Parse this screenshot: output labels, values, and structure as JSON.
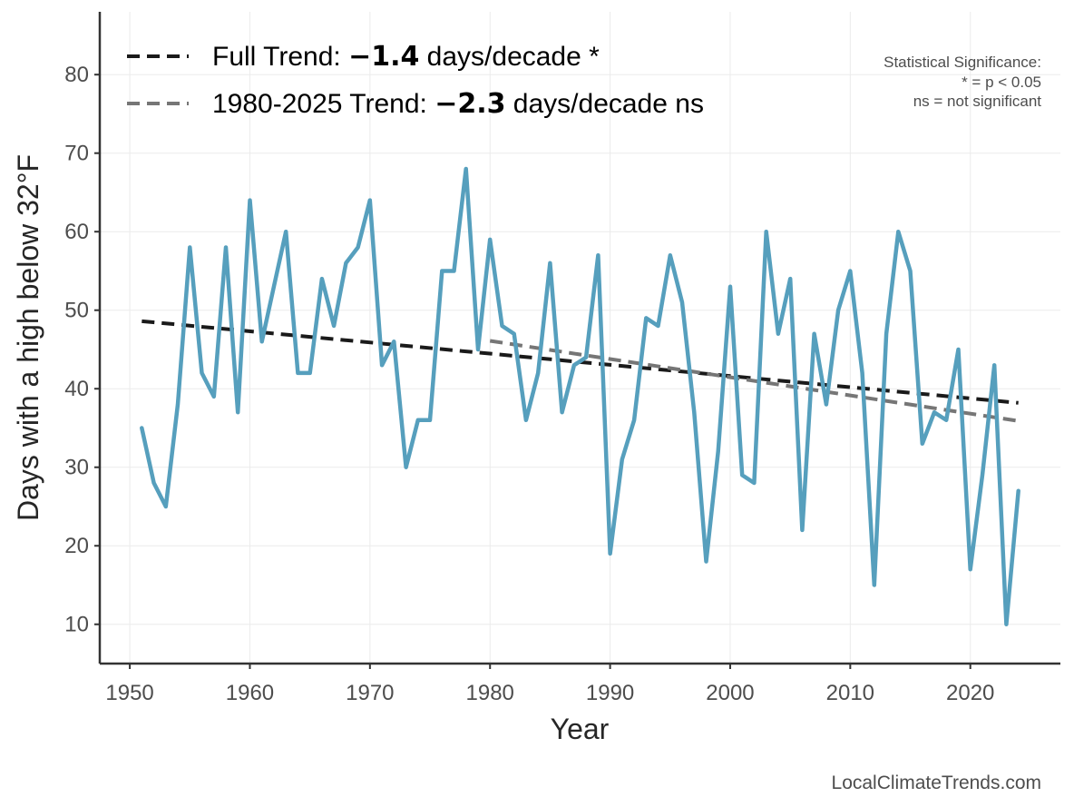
{
  "chart_data": {
    "type": "line",
    "xlabel": "Year",
    "ylabel": "Days with a high below 32°F",
    "xlim": [
      1947.5,
      2027.5
    ],
    "ylim": [
      5,
      88
    ],
    "x_ticks": [
      1950,
      1960,
      1970,
      1980,
      1990,
      2000,
      2010,
      2020
    ],
    "y_ticks": [
      10,
      20,
      30,
      40,
      50,
      60,
      70,
      80
    ],
    "grid": true,
    "legend_position": "top-left",
    "series": [
      {
        "color": "#569fbd",
        "x": [
          1951,
          1952,
          1953,
          1954,
          1955,
          1956,
          1957,
          1958,
          1959,
          1960,
          1961,
          1962,
          1963,
          1964,
          1965,
          1966,
          1967,
          1968,
          1969,
          1970,
          1971,
          1972,
          1973,
          1974,
          1975,
          1976,
          1977,
          1978,
          1979,
          1980,
          1981,
          1982,
          1983,
          1984,
          1985,
          1986,
          1987,
          1988,
          1989,
          1990,
          1991,
          1992,
          1993,
          1994,
          1995,
          1996,
          1997,
          1998,
          1999,
          2000,
          2001,
          2002,
          2003,
          2004,
          2005,
          2006,
          2007,
          2008,
          2009,
          2010,
          2011,
          2012,
          2013,
          2014,
          2015,
          2016,
          2017,
          2018,
          2019,
          2020,
          2021,
          2022,
          2023,
          2024
        ],
        "y": [
          35,
          28,
          25,
          38,
          58,
          42,
          39,
          58,
          37,
          64,
          46,
          53,
          60,
          42,
          42,
          54,
          48,
          56,
          58,
          64,
          43,
          46,
          30,
          36,
          36,
          55,
          55,
          68,
          45,
          59,
          48,
          47,
          36,
          42,
          56,
          37,
          43,
          44,
          57,
          19,
          31,
          36,
          49,
          48,
          57,
          51,
          37,
          18,
          32,
          53,
          29,
          28,
          60,
          47,
          54,
          22,
          47,
          38,
          50,
          55,
          42,
          15,
          47,
          60,
          55,
          33,
          37,
          36,
          45,
          17,
          29,
          43,
          10,
          27
        ]
      }
    ],
    "trend_lines": [
      {
        "name": "Full Trend",
        "color": "#1a1a1a",
        "x": [
          1951,
          2024
        ],
        "y": [
          48.6,
          38.2
        ]
      },
      {
        "name": "1980-2025 Trend",
        "color": "#767676",
        "x": [
          1980,
          2024
        ],
        "y": [
          46.1,
          35.9
        ]
      }
    ],
    "legend": [
      {
        "prefix": "Full Trend: ",
        "value": "−1.4",
        "suffix": " days/decade *",
        "color": "#1a1a1a"
      },
      {
        "prefix": "1980-2025 Trend: ",
        "value": "−2.3",
        "suffix": " days/decade ns",
        "color": "#767676"
      }
    ],
    "annotation": {
      "line1": "Statistical Significance:",
      "line2": "* = p < 0.05",
      "line3": "ns = not significant"
    },
    "source": "LocalClimateTrends.com"
  }
}
